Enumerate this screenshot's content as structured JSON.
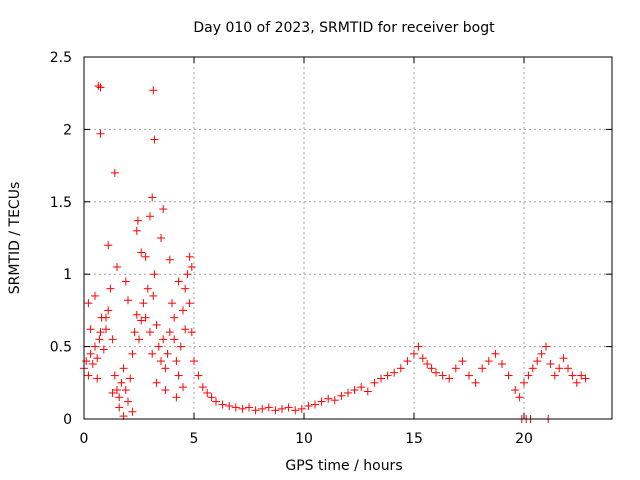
{
  "chart_data": {
    "type": "scatter",
    "title": "Day 010 of 2023, SRMTID for receiver bogt",
    "xlabel": "GPS time / hours",
    "ylabel": "SRMTID / TECUs",
    "xlim": [
      0,
      24
    ],
    "ylim": [
      0,
      2.5
    ],
    "xticks": [
      0,
      5,
      10,
      15,
      20
    ],
    "xtick_labels": [
      "0",
      "5",
      "10",
      "15",
      "20"
    ],
    "yticks": [
      0,
      0.5,
      1,
      1.5,
      2,
      2.5
    ],
    "ytick_labels": [
      "0",
      "0.5",
      "1",
      "1.5",
      "2",
      "2.5"
    ],
    "grid": true,
    "marker": "+",
    "series": [
      {
        "name": "SRMTID",
        "color": "#ff0000",
        "x": [
          0.0,
          0.1,
          0.2,
          0.3,
          0.4,
          0.5,
          0.6,
          0.7,
          0.75,
          0.8,
          0.9,
          1.0,
          1.1,
          1.2,
          1.3,
          1.4,
          1.5,
          1.6,
          1.7,
          1.8,
          1.9,
          2.0,
          2.1,
          2.2,
          2.3,
          2.4,
          2.5,
          2.6,
          2.7,
          2.8,
          2.9,
          3.0,
          3.1,
          3.15,
          3.2,
          3.3,
          3.4,
          3.5,
          3.6,
          3.7,
          3.8,
          3.9,
          4.0,
          4.1,
          4.2,
          4.3,
          4.4,
          4.5,
          4.6,
          4.7,
          4.8,
          4.9,
          5.0,
          5.2,
          5.4,
          5.6,
          5.8,
          6.0,
          6.3,
          6.6,
          6.9,
          7.2,
          7.5,
          7.8,
          8.1,
          8.4,
          8.7,
          9.0,
          9.3,
          9.6,
          9.9,
          10.2,
          10.5,
          10.8,
          11.1,
          11.4,
          11.7,
          12.0,
          12.3,
          12.6,
          12.9,
          13.2,
          13.5,
          13.8,
          14.1,
          14.4,
          14.7,
          15.0,
          15.2,
          15.4,
          15.6,
          15.8,
          16.0,
          16.3,
          16.6,
          16.9,
          17.2,
          17.5,
          17.8,
          18.1,
          18.4,
          18.7,
          19.0,
          19.3,
          19.6,
          19.8,
          20.0,
          20.2,
          20.4,
          20.6,
          20.8,
          21.0,
          21.2,
          21.4,
          21.6,
          21.8,
          22.0,
          22.2,
          22.4,
          22.6,
          22.8,
          0.65,
          0.75,
          0.75,
          1.4,
          2.45,
          3.1,
          3.15,
          3.2,
          0.3,
          0.5,
          1.1,
          1.9,
          2.4,
          2.8,
          3.5,
          3.9,
          4.3,
          4.8,
          4.9,
          0.2,
          0.6,
          1.0,
          1.5,
          2.0,
          2.6,
          3.0,
          3.6,
          4.1,
          4.6,
          1.3,
          1.6,
          1.8,
          2.2,
          3.3,
          3.7,
          4.2,
          4.5,
          19.9,
          20.1,
          20.3,
          21.1
        ],
        "y": [
          0.35,
          0.4,
          0.3,
          0.45,
          0.38,
          0.5,
          0.42,
          0.55,
          0.6,
          0.7,
          0.48,
          0.62,
          0.75,
          0.9,
          0.55,
          0.3,
          0.2,
          0.15,
          0.25,
          0.35,
          0.2,
          0.12,
          0.28,
          0.45,
          0.6,
          0.72,
          0.55,
          0.68,
          0.8,
          0.7,
          0.9,
          0.6,
          0.45,
          0.85,
          1.0,
          0.65,
          0.5,
          0.4,
          0.55,
          0.35,
          0.45,
          0.6,
          0.8,
          0.55,
          0.4,
          0.3,
          0.5,
          0.75,
          0.9,
          1.0,
          0.8,
          0.6,
          0.4,
          0.3,
          0.22,
          0.18,
          0.15,
          0.12,
          0.1,
          0.09,
          0.08,
          0.07,
          0.08,
          0.06,
          0.07,
          0.08,
          0.06,
          0.07,
          0.08,
          0.06,
          0.07,
          0.09,
          0.1,
          0.12,
          0.14,
          0.13,
          0.16,
          0.18,
          0.2,
          0.22,
          0.19,
          0.25,
          0.28,
          0.3,
          0.32,
          0.35,
          0.4,
          0.45,
          0.5,
          0.42,
          0.38,
          0.35,
          0.32,
          0.3,
          0.28,
          0.35,
          0.4,
          0.3,
          0.25,
          0.35,
          0.4,
          0.45,
          0.38,
          0.3,
          0.2,
          0.15,
          0.25,
          0.3,
          0.35,
          0.4,
          0.45,
          0.5,
          0.38,
          0.3,
          0.35,
          0.42,
          0.35,
          0.3,
          0.25,
          0.3,
          0.28,
          2.3,
          2.29,
          1.97,
          1.7,
          1.37,
          1.53,
          2.27,
          1.93,
          0.62,
          0.85,
          1.2,
          0.95,
          1.3,
          1.12,
          1.25,
          1.1,
          0.95,
          1.12,
          1.05,
          0.8,
          0.28,
          0.7,
          1.05,
          0.82,
          1.15,
          1.4,
          1.45,
          0.7,
          0.62,
          0.18,
          0.08,
          0.02,
          0.05,
          0.25,
          0.2,
          0.15,
          0.22,
          0.0,
          0.0,
          0.0,
          0.0
        ]
      }
    ]
  }
}
